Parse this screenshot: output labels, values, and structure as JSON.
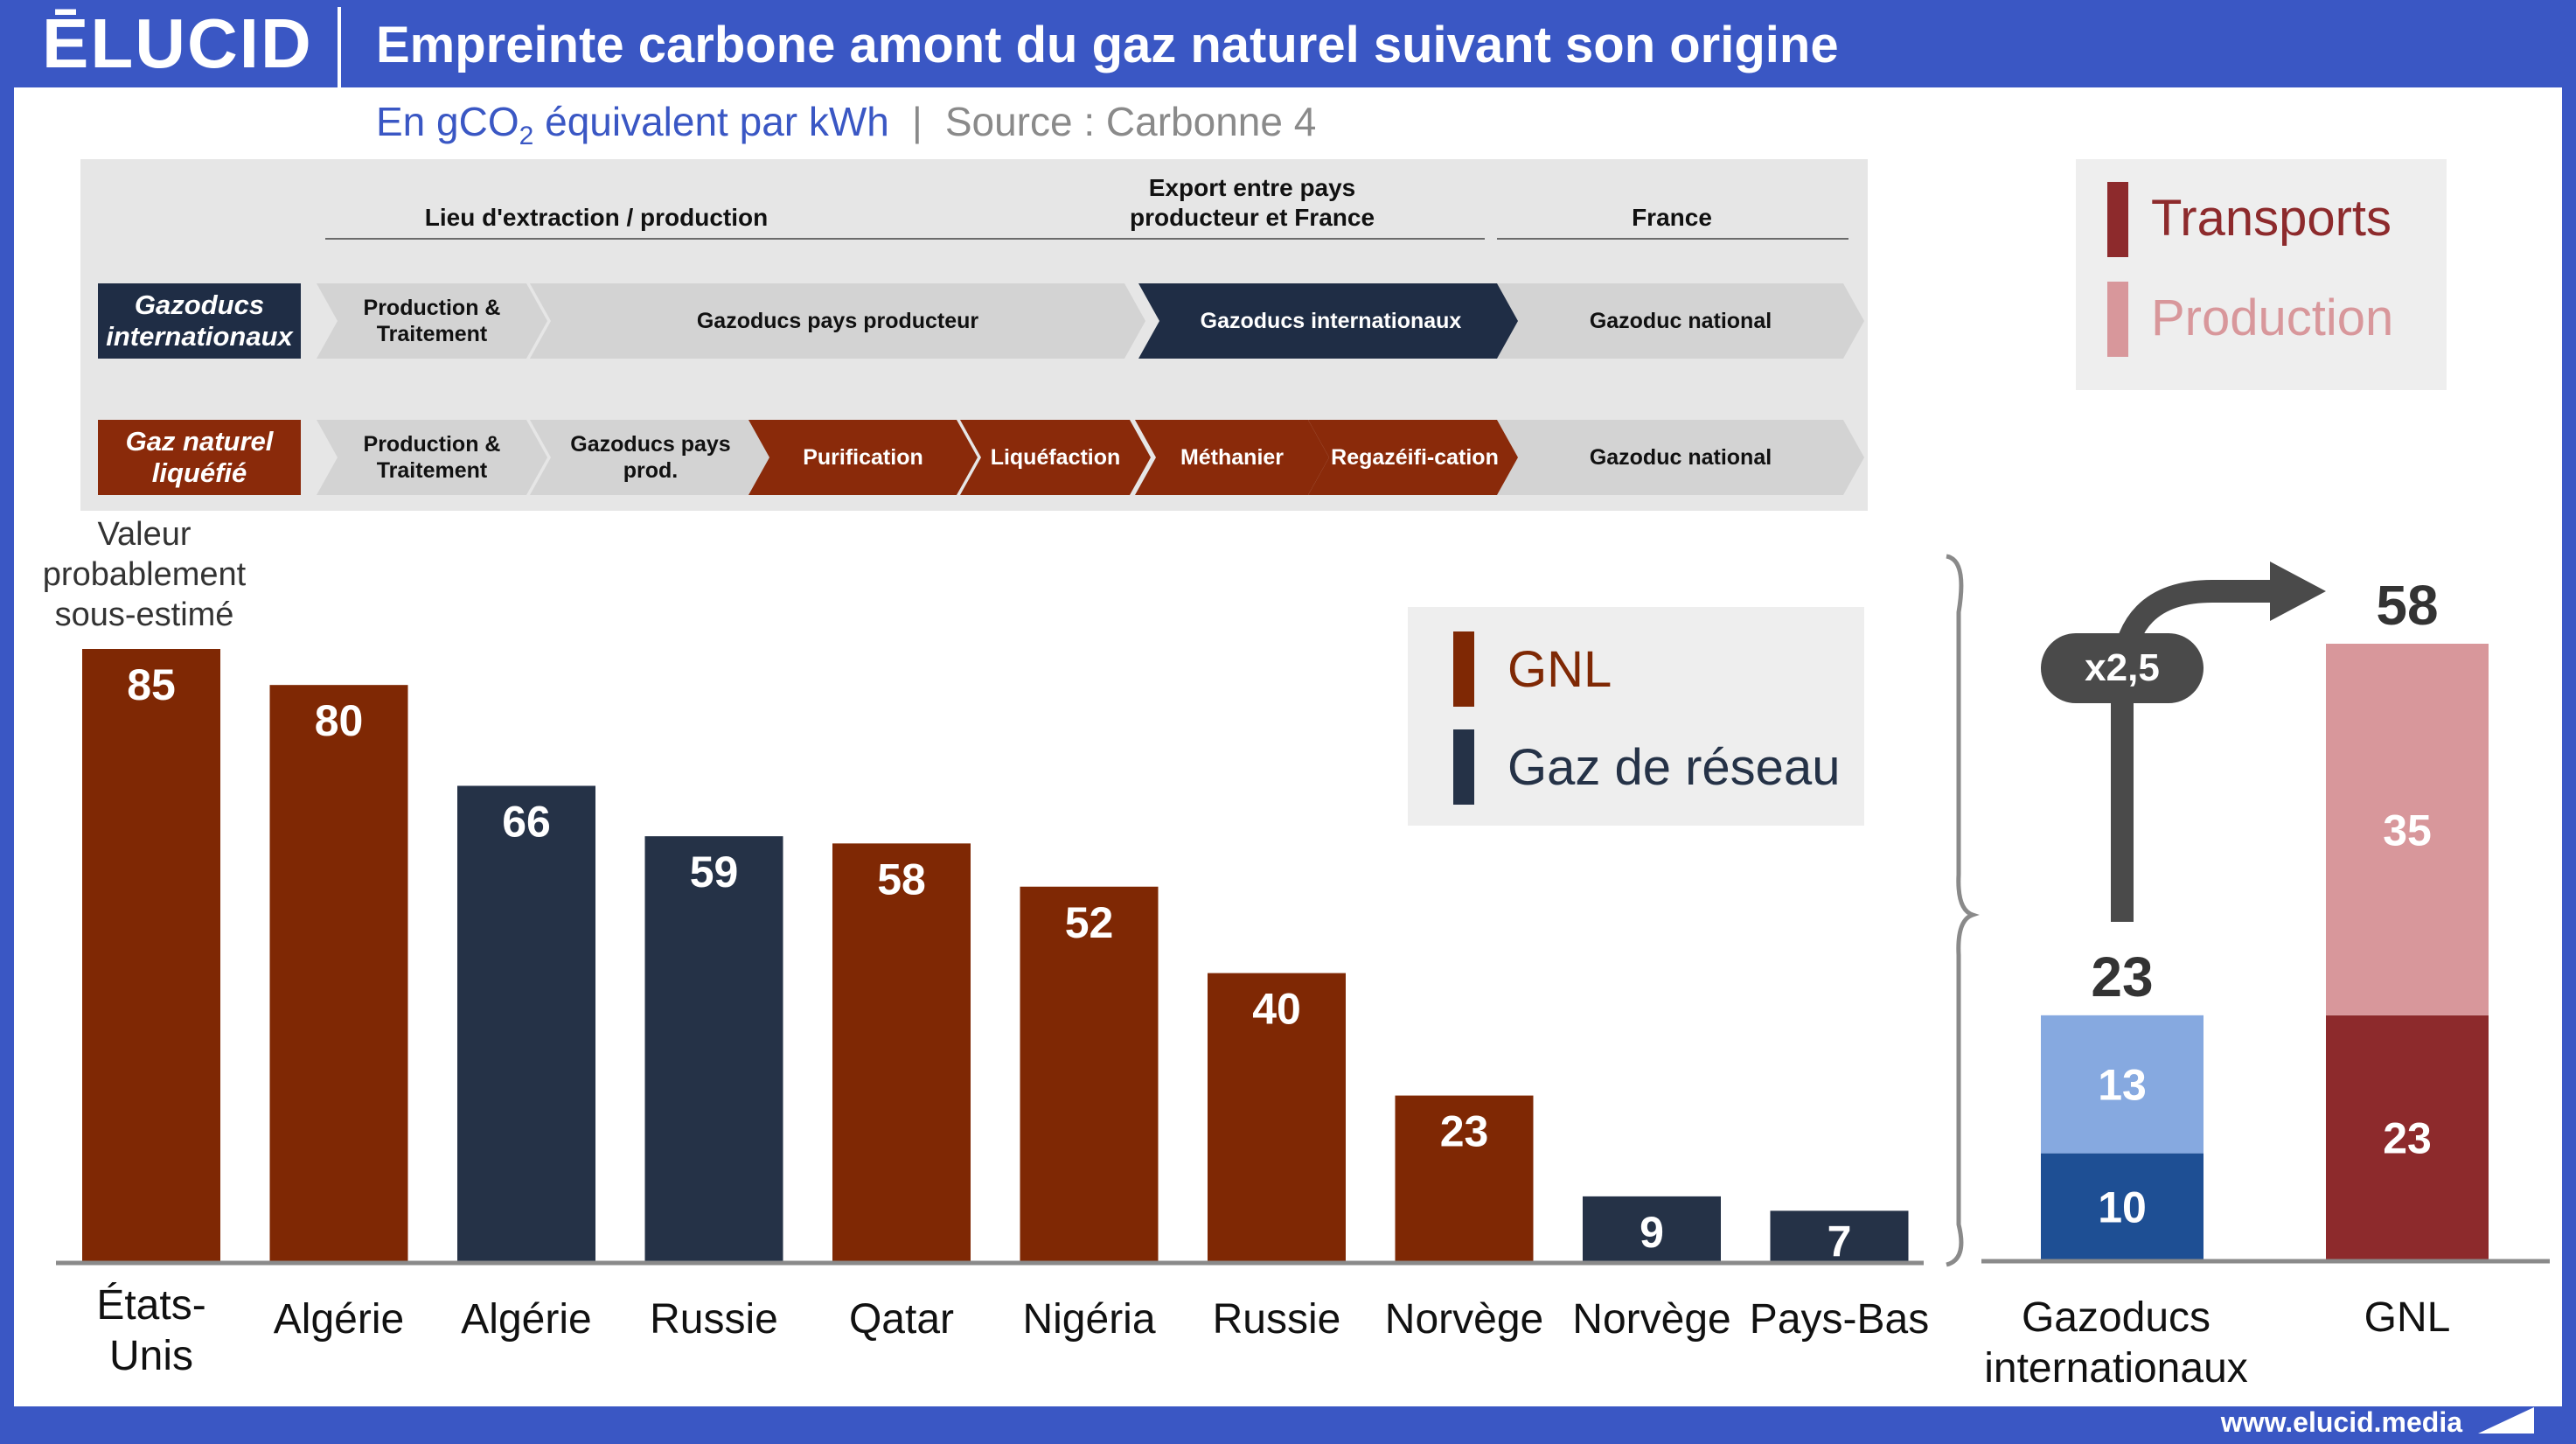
{
  "header": {
    "logo": "ĒLUCID",
    "title": "Empreinte carbone amont du gaz naturel suivant son origine"
  },
  "subtitle": {
    "unit_prefix": "En gCO",
    "unit_sub": "2",
    "unit_suffix": " équivalent par kWh",
    "separator": "|",
    "source": "Source : Carbonne 4"
  },
  "process": {
    "phases": [
      "Lieu d'extraction / production",
      "Export entre pays producteur et France",
      "France"
    ],
    "rows": [
      {
        "label": "Gazoducs internationaux",
        "steps": [
          "Production & Traitement",
          "Gazoducs pays producteur",
          "Gazoducs internationaux",
          "Gazoduc national"
        ]
      },
      {
        "label": "Gaz naturel liquéfié",
        "steps": [
          "Production & Traitement",
          "Gazoducs pays prod.",
          "Purification",
          "Liquéfaction",
          "Méthanier",
          "Regazéifi-cation",
          "Gazoduc national"
        ]
      }
    ]
  },
  "colors": {
    "gnl": "#7f2804",
    "reseau": "#253247",
    "transports": "#8d2a2c",
    "production": "#d8979b",
    "pipe_top": "#86a9e0",
    "pipe_bottom": "#1e4f94",
    "header": "#3a57c4"
  },
  "note": "Valeur probablement sous-estimé",
  "legend_main": {
    "gnl": "GNL",
    "reseau": "Gaz de réseau"
  },
  "legend_side": {
    "transports": "Transports",
    "production": "Production"
  },
  "multiplier": "x2,5",
  "footer": {
    "url": "www.elucid.media"
  },
  "chart_data": [
    {
      "type": "bar",
      "categories": [
        "États-Unis",
        "Algérie",
        "Algérie",
        "Russie",
        "Qatar",
        "Nigéria",
        "Russie",
        "Norvège",
        "Norvège",
        "Pays-Bas"
      ],
      "values": [
        85,
        80,
        66,
        59,
        58,
        52,
        40,
        23,
        9,
        7
      ],
      "bar_type": [
        "GNL",
        "GNL",
        "Gaz de réseau",
        "Gaz de réseau",
        "GNL",
        "GNL",
        "GNL",
        "GNL",
        "Gaz de réseau",
        "Gaz de réseau"
      ],
      "legend": [
        "GNL",
        "Gaz de réseau"
      ],
      "ylim": [
        0,
        90
      ],
      "grid": false
    },
    {
      "type": "bar",
      "stacked": true,
      "categories": [
        "Gazoducs internationaux",
        "GNL"
      ],
      "series": [
        {
          "name": "Production",
          "values": [
            10,
            23
          ]
        },
        {
          "name": "Transports",
          "values": [
            13,
            35
          ]
        }
      ],
      "totals": [
        23,
        58
      ],
      "annotation": "x2,5",
      "ylim": [
        0,
        62
      ],
      "grid": false
    }
  ]
}
